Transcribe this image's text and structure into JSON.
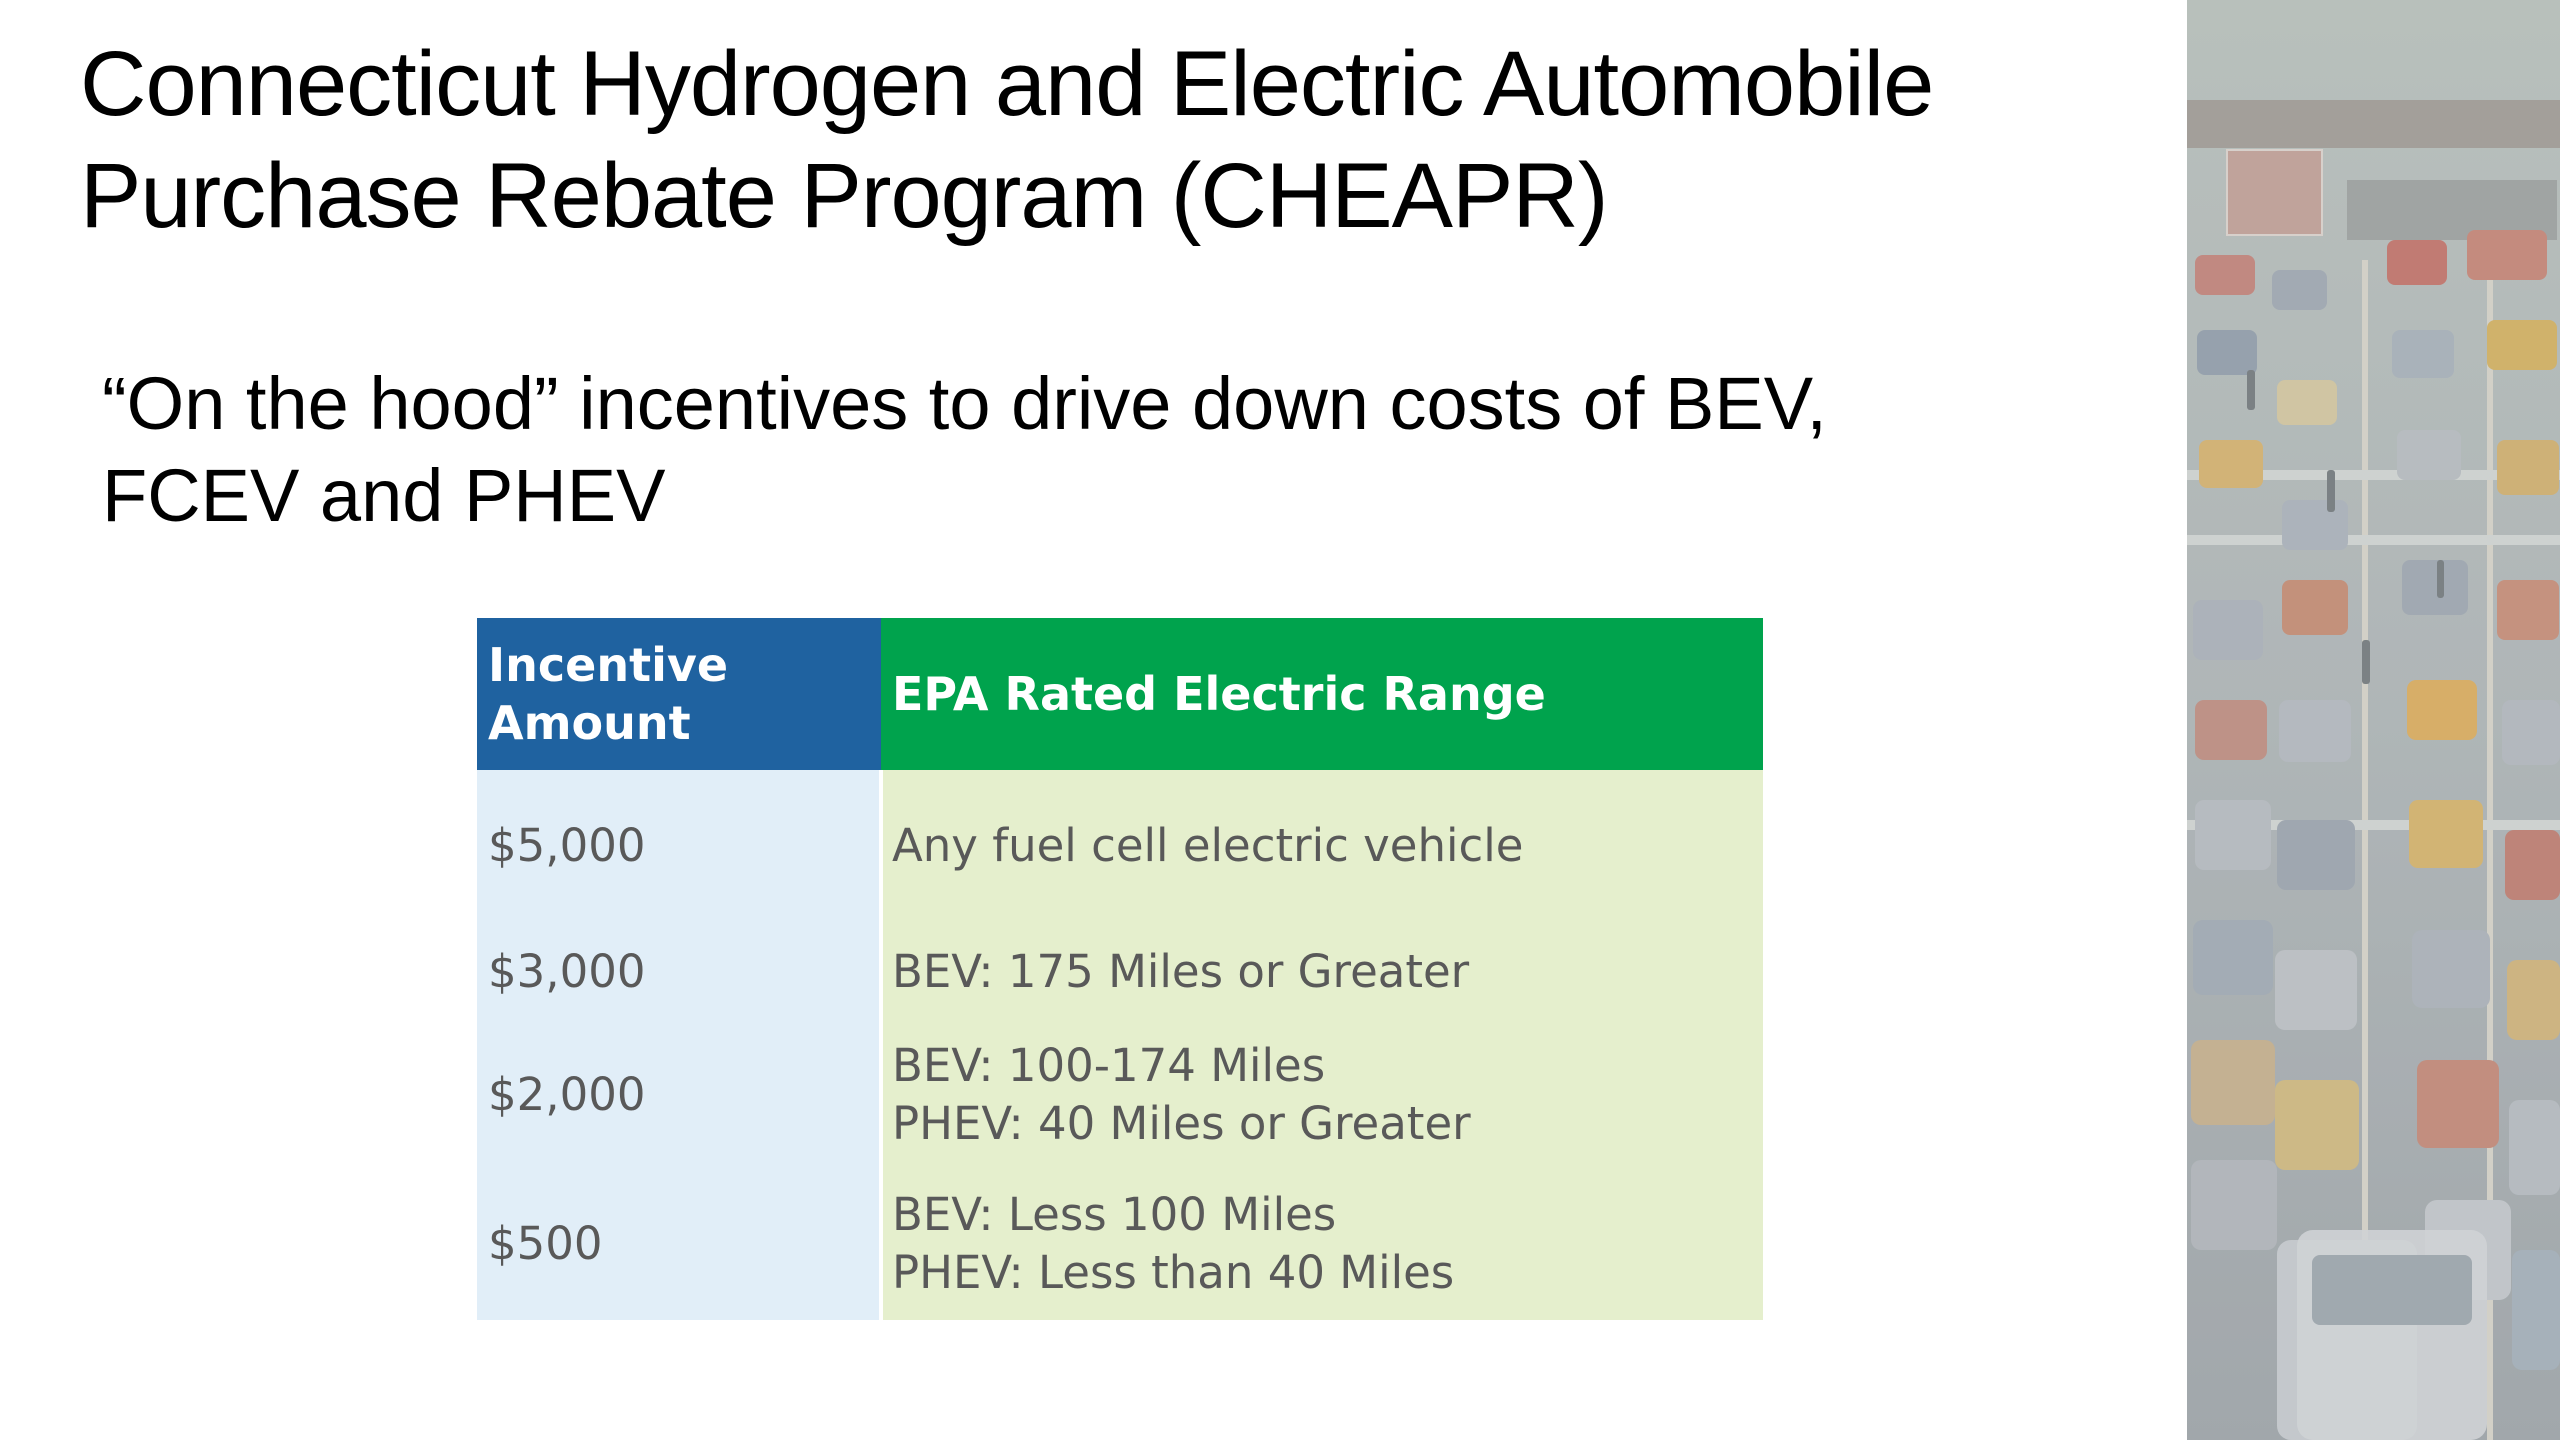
{
  "slide": {
    "title_lines": [
      "Connecticut Hydrogen and Electric Automobile",
      "Purchase Rebate Program (CHEAPR)"
    ],
    "subtitle_lines": [
      "“On the hood” incentives to drive down costs of BEV,",
      "FCEV and PHEV"
    ]
  },
  "table": {
    "headers": {
      "col1_lines": [
        "Incentive",
        "Amount"
      ],
      "col2": "EPA Rated Electric Range"
    },
    "rows": [
      {
        "amount": "$5,000",
        "range_lines": [
          "Any fuel cell electric vehicle"
        ]
      },
      {
        "amount": "$3,000",
        "range_lines": [
          "BEV: 175 Miles or Greater"
        ]
      },
      {
        "amount": "$2,000",
        "range_lines": [
          "BEV: 100-174 Miles",
          "PHEV: 40 Miles or Greater"
        ]
      },
      {
        "amount": "$500",
        "range_lines": [
          "BEV: Less 100 Miles",
          "PHEV: Less than 40 Miles"
        ]
      }
    ]
  },
  "image": {
    "subject": "faded photo of city traffic on a multi-lane street"
  },
  "colors": {
    "header_amount_bg": "#1f62a0",
    "header_range_bg": "#00a34d",
    "amount_col_bg": "#e1eef8",
    "range_col_bg": "#e5efcd",
    "body_text": "#595959"
  }
}
